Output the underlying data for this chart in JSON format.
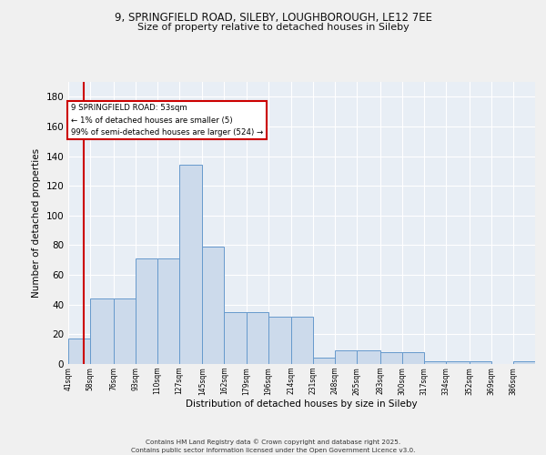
{
  "title_line1": "9, SPRINGFIELD ROAD, SILEBY, LOUGHBOROUGH, LE12 7EE",
  "title_line2": "Size of property relative to detached houses in Sileby",
  "xlabel": "Distribution of detached houses by size in Sileby",
  "ylabel": "Number of detached properties",
  "bar_color": "#ccdaeb",
  "bar_edge_color": "#6699cc",
  "background_color": "#e8eef5",
  "grid_color": "#ffffff",
  "vline_color": "#cc0000",
  "annotation_text": "9 SPRINGFIELD ROAD: 53sqm\n← 1% of detached houses are smaller (5)\n99% of semi-detached houses are larger (524) →",
  "annotation_box_color": "#ffffff",
  "annotation_edge_color": "#cc0000",
  "bins": [
    41,
    58,
    76,
    93,
    110,
    127,
    145,
    162,
    179,
    196,
    214,
    231,
    248,
    265,
    283,
    300,
    317,
    334,
    352,
    369,
    386,
    403
  ],
  "counts": [
    17,
    44,
    44,
    71,
    71,
    134,
    79,
    35,
    35,
    32,
    32,
    4,
    9,
    9,
    8,
    8,
    2,
    2,
    2,
    0,
    2
  ],
  "ylim": [
    0,
    190
  ],
  "yticks": [
    0,
    20,
    40,
    60,
    80,
    100,
    120,
    140,
    160,
    180
  ],
  "tick_labels": [
    "41sqm",
    "58sqm",
    "76sqm",
    "93sqm",
    "110sqm",
    "127sqm",
    "145sqm",
    "162sqm",
    "179sqm",
    "196sqm",
    "214sqm",
    "231sqm",
    "248sqm",
    "265sqm",
    "283sqm",
    "300sqm",
    "317sqm",
    "334sqm",
    "352sqm",
    "369sqm",
    "386sqm"
  ],
  "footer_text": "Contains HM Land Registry data © Crown copyright and database right 2025.\nContains public sector information licensed under the Open Government Licence v3.0.",
  "property_size": 53,
  "fig_bg": "#f0f0f0"
}
